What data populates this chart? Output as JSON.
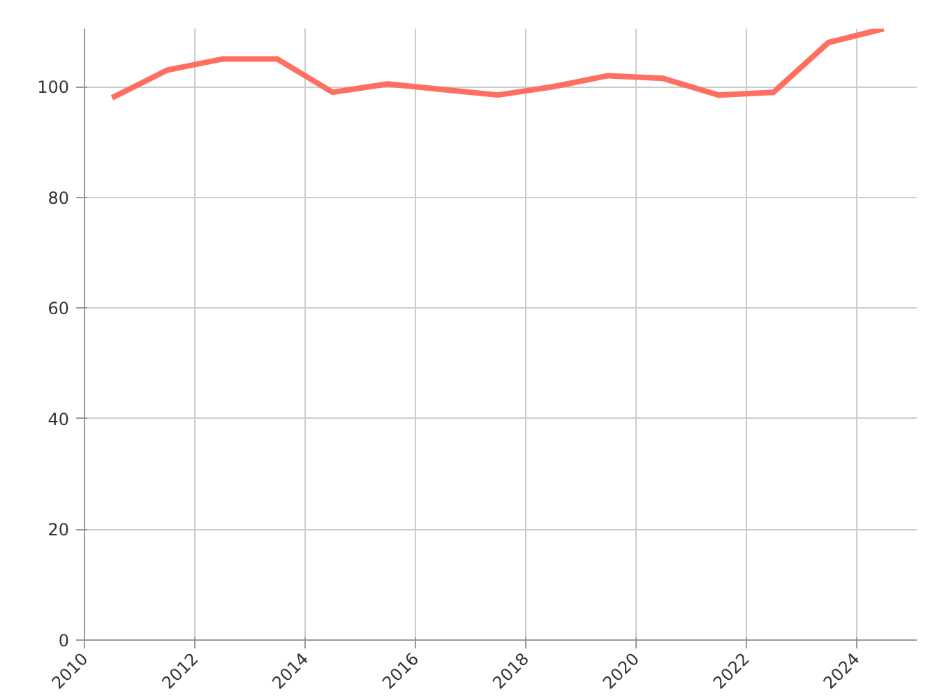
{
  "chart_data": {
    "type": "line",
    "x": [
      2010.5,
      2011.5,
      2012.5,
      2013.5,
      2014.5,
      2015.5,
      2016.5,
      2017.5,
      2018.5,
      2019.5,
      2020.5,
      2021.5,
      2022.5,
      2023.5,
      2024.5
    ],
    "series": [
      {
        "color": "#ff6f61",
        "values": [
          98,
          103,
          105,
          105,
          99,
          100.5,
          99.5,
          98.5,
          100,
          102,
          101.5,
          98.5,
          99,
          108,
          110.5
        ]
      }
    ],
    "xlim": [
      2010,
      2025.1
    ],
    "ylim": [
      0,
      110.5
    ],
    "xticks": [
      2010,
      2012,
      2014,
      2016,
      2018,
      2020,
      2022,
      2024
    ],
    "yticks": [
      0,
      20,
      40,
      60,
      80,
      100
    ],
    "grid": true,
    "marker": "none",
    "line_style": "solid"
  }
}
